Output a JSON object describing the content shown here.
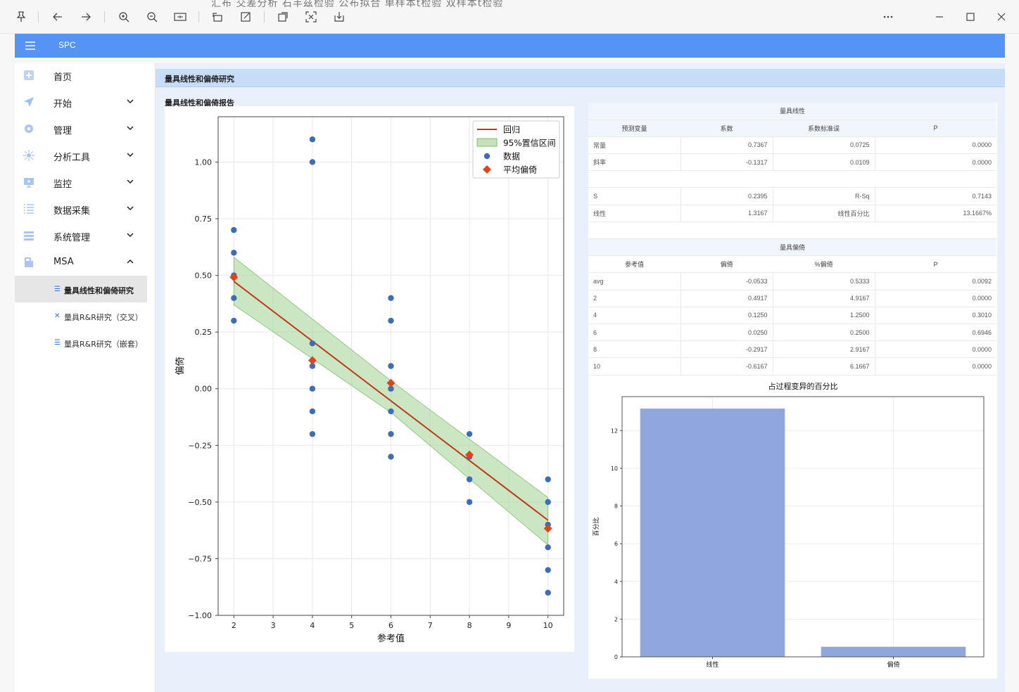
{
  "app": {
    "title": "SPC"
  },
  "toolbar": {
    "ghost_text": "汇布 交差分析 石丰兹检验 公布拟合 单样本t检验 双样本t检验"
  },
  "sidebar": {
    "items": [
      {
        "label": "首页",
        "icon": "home-icon",
        "has_chevron": false
      },
      {
        "label": "开始",
        "icon": "send-icon",
        "has_chevron": true
      },
      {
        "label": "管理",
        "icon": "gear-icon",
        "has_chevron": true
      },
      {
        "label": "分析工具",
        "icon": "analysis-icon",
        "has_chevron": true
      },
      {
        "label": "监控",
        "icon": "monitor-icon",
        "has_chevron": true
      },
      {
        "label": "数据采集",
        "icon": "list-icon",
        "has_chevron": true
      },
      {
        "label": "系统管理",
        "icon": "storage-icon",
        "has_chevron": true
      },
      {
        "label": "MSA",
        "icon": "gauge-icon",
        "has_chevron": true,
        "expanded": true
      }
    ],
    "sub_items": [
      {
        "label": "量具线性和偏倚研究",
        "active": true
      },
      {
        "label": "量具R&R研究（交叉）",
        "active": false
      },
      {
        "label": "量具R&R研究（嵌套）",
        "active": false
      }
    ]
  },
  "main": {
    "header": "量具线性和偏倚研究",
    "report_title": "量具线性和偏倚报告"
  },
  "linearity_table": {
    "title": "量具线性",
    "headers": [
      "预测变量",
      "系数",
      "系数标准误",
      "P"
    ],
    "rows": [
      [
        "常量",
        "0.7367",
        "0.0725",
        "0.0000"
      ],
      [
        "斜率",
        "-0.1317",
        "0.0109",
        "0.0000"
      ]
    ],
    "stats": [
      [
        "S",
        "0.2395",
        "R-Sq",
        "0.7143"
      ],
      [
        "线性",
        "1.3167",
        "线性百分比",
        "13.1667%"
      ]
    ]
  },
  "bias_table": {
    "title": "量具偏倚",
    "headers": [
      "参考值",
      "偏倚",
      "%偏倚",
      "P"
    ],
    "rows": [
      [
        "avg",
        "-0.0533",
        "0.5333",
        "0.0092"
      ],
      [
        "2",
        "0.4917",
        "4.9167",
        "0.0000"
      ],
      [
        "4",
        "0.1250",
        "1.2500",
        "0.3010"
      ],
      [
        "6",
        "0.0250",
        "0.2500",
        "0.6946"
      ],
      [
        "8",
        "-0.2917",
        "2.9167",
        "0.0000"
      ],
      [
        "10",
        "-0.6167",
        "6.1667",
        "0.0000"
      ]
    ]
  },
  "chart_data": [
    {
      "type": "scatter",
      "title": "",
      "xlabel": "参考值",
      "ylabel": "偏倚",
      "xlim": [
        1.6,
        10.4
      ],
      "ylim": [
        -1.0,
        1.2
      ],
      "xticks": [
        "2",
        "3",
        "4",
        "5",
        "6",
        "7",
        "8",
        "9",
        "10"
      ],
      "yticks": [
        "1.00",
        "0.75",
        "0.50",
        "0.25",
        "0.00",
        "−0.25",
        "−0.50",
        "−0.75",
        "−1.00"
      ],
      "grid": true,
      "legend_position": "top-right",
      "legend": [
        "回归",
        "95%置信区间",
        "数据",
        "平均偏倚"
      ],
      "series": [
        {
          "name": "数据",
          "points": [
            [
              2,
              0.7
            ],
            [
              2,
              0.6
            ],
            [
              2,
              0.5
            ],
            [
              2,
              0.4
            ],
            [
              2,
              0.3
            ],
            [
              4,
              1.1
            ],
            [
              4,
              1.0
            ],
            [
              4,
              0.2
            ],
            [
              4,
              0.1
            ],
            [
              4,
              0.0
            ],
            [
              4,
              -0.1
            ],
            [
              4,
              -0.2
            ],
            [
              6,
              0.4
            ],
            [
              6,
              0.3
            ],
            [
              6,
              0.1
            ],
            [
              6,
              0.0
            ],
            [
              6,
              -0.1
            ],
            [
              6,
              -0.2
            ],
            [
              6,
              -0.3
            ],
            [
              8,
              -0.2
            ],
            [
              8,
              -0.3
            ],
            [
              8,
              -0.4
            ],
            [
              8,
              -0.5
            ],
            [
              10,
              -0.4
            ],
            [
              10,
              -0.5
            ],
            [
              10,
              -0.6
            ],
            [
              10,
              -0.7
            ],
            [
              10,
              -0.8
            ],
            [
              10,
              -0.9
            ]
          ]
        },
        {
          "name": "平均偏倚",
          "points": [
            [
              2,
              0.4917
            ],
            [
              4,
              0.125
            ],
            [
              6,
              0.025
            ],
            [
              8,
              -0.2917
            ],
            [
              10,
              -0.6167
            ]
          ]
        },
        {
          "name": "回归",
          "intercept": 0.7367,
          "slope": -0.1317,
          "x_range": [
            2,
            10
          ]
        },
        {
          "name": "95%置信区间",
          "band": [
            [
              2,
              0.58,
              0.37
            ],
            [
              6,
              0.035,
              -0.105
            ],
            [
              10,
              -0.48,
              -0.69
            ]
          ]
        }
      ],
      "colors": {
        "regression": "#c0391b",
        "band": "#a9d59b",
        "data": "#3d6db5",
        "mean": "#e0441c"
      }
    },
    {
      "type": "bar",
      "title": "占过程变异的百分比",
      "xlabel": "",
      "ylabel": "百分比",
      "categories": [
        "线性",
        "偏倚"
      ],
      "values": [
        13.1667,
        0.5333
      ],
      "ylim": [
        0,
        13.8
      ],
      "yticks": [
        "0",
        "2",
        "4",
        "6",
        "8",
        "10",
        "12"
      ],
      "grid": true,
      "colors": {
        "bar": "#8fa7dc"
      }
    }
  ]
}
